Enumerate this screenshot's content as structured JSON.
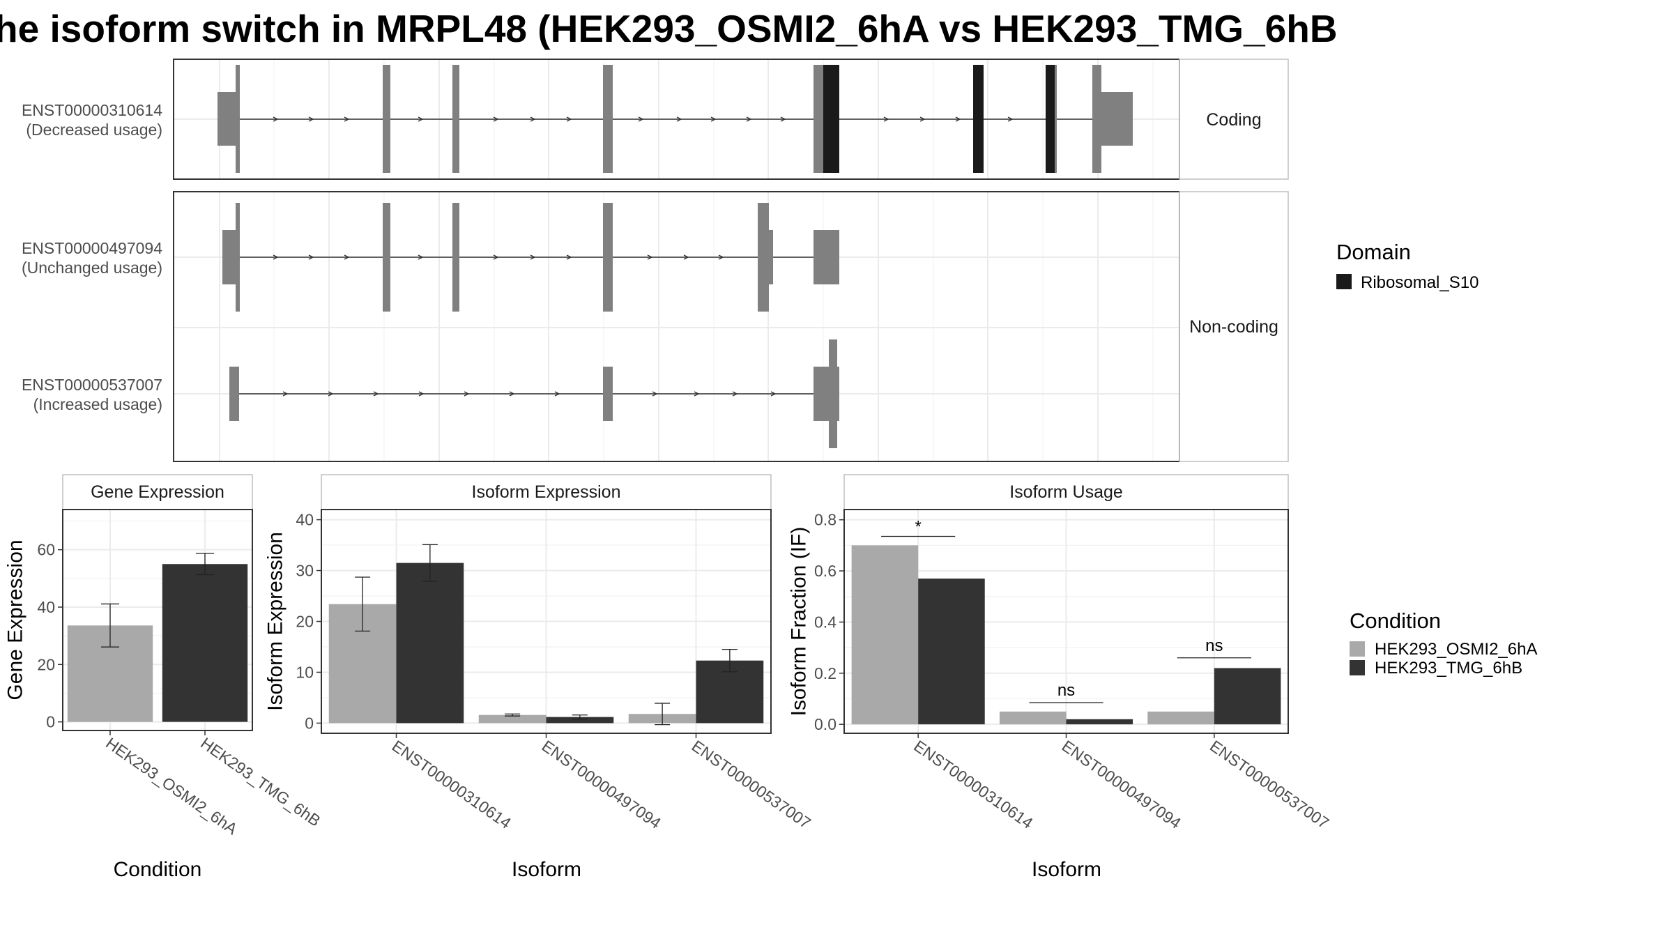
{
  "title": "he isoform switch in MRPL48 (HEK293_OSMI2_6hA vs HEK293_TMG_6hB",
  "colors": {
    "cond_a": "#a9a9a9",
    "cond_b": "#333333",
    "exon": "#808080",
    "domain": "#1a1a1a"
  },
  "chart_data": [
    {
      "type": "transcript_structure",
      "facets": [
        "Coding",
        "Non-coding"
      ],
      "transcripts": [
        {
          "id": "ENST00000310614",
          "usage": "(Decreased usage)",
          "facet": "Coding"
        },
        {
          "id": "ENST00000497094",
          "usage": "(Unchanged usage)",
          "facet": "Non-coding"
        },
        {
          "id": "ENST00000537007",
          "usage": "(Increased usage)",
          "facet": "Non-coding"
        }
      ],
      "legend": {
        "title": "Domain",
        "items": [
          "Ribosomal_S10"
        ]
      }
    },
    {
      "type": "bar",
      "title": "Gene Expression",
      "xlabel": "Condition",
      "ylabel": "Gene Expression",
      "categories": [
        "HEK293_OSMI2_6hA",
        "HEK293_TMG_6hB"
      ],
      "values": [
        33.6,
        55.0
      ],
      "errors": [
        7.5,
        3.7
      ],
      "ylim": [
        -3,
        74
      ],
      "yticks": [
        0,
        20,
        40,
        60
      ]
    },
    {
      "type": "bar",
      "title": "Isoform Expression",
      "xlabel": "Isoform",
      "ylabel": "Isoform Expression",
      "categories": [
        "ENST00000310614",
        "ENST00000497094",
        "ENST00000537007"
      ],
      "series": [
        {
          "name": "HEK293_OSMI2_6hA",
          "values": [
            23.4,
            1.6,
            1.8
          ],
          "errors": [
            5.3,
            0.2,
            2.1
          ]
        },
        {
          "name": "HEK293_TMG_6hB",
          "values": [
            31.5,
            1.2,
            12.3
          ],
          "errors": [
            3.6,
            0.4,
            2.2
          ]
        }
      ],
      "ylim": [
        -2,
        42
      ],
      "yticks": [
        0,
        10,
        20,
        30,
        40
      ]
    },
    {
      "type": "bar",
      "title": "Isoform Usage",
      "xlabel": "Isoform",
      "ylabel": "Isoform Fraction (IF)",
      "categories": [
        "ENST00000310614",
        "ENST00000497094",
        "ENST00000537007"
      ],
      "series": [
        {
          "name": "HEK293_OSMI2_6hA",
          "values": [
            0.7,
            0.05,
            0.05
          ]
        },
        {
          "name": "HEK293_TMG_6hB",
          "values": [
            0.57,
            0.02,
            0.22
          ]
        }
      ],
      "significance": [
        {
          "label": "*",
          "y": 0.735
        },
        {
          "label": "ns",
          "y": 0.085
        },
        {
          "label": "ns",
          "y": 0.26
        }
      ],
      "ylim": [
        -0.035,
        0.84
      ],
      "yticks": [
        "0.0",
        "0.2",
        "0.4",
        "0.6",
        "0.8"
      ]
    }
  ],
  "condition_legend": {
    "title": "Condition",
    "items": [
      "HEK293_OSMI2_6hA",
      "HEK293_TMG_6hB"
    ]
  }
}
